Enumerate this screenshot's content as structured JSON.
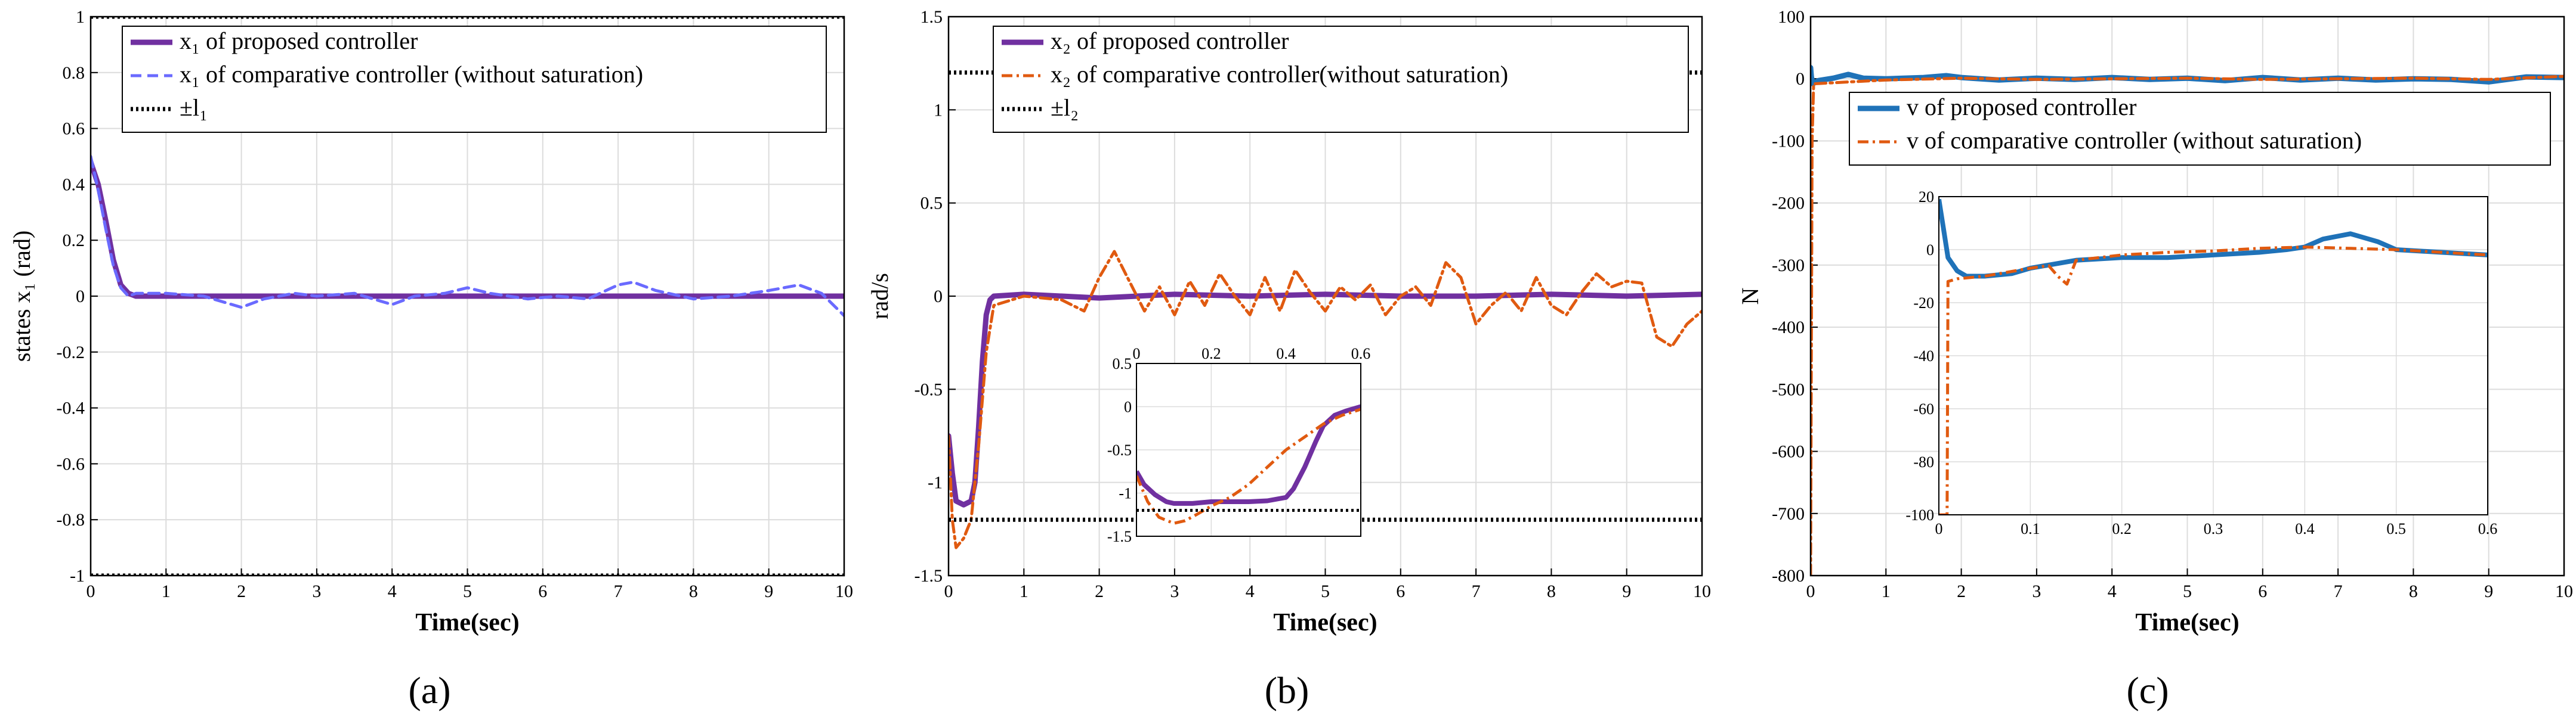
{
  "chart_data": [
    {
      "type": "line",
      "panel_label": "(a)",
      "xlabel": "Time(sec)",
      "ylabel": "states x₁ (rad)",
      "xlim": [
        0,
        10
      ],
      "ylim": [
        -1,
        1
      ],
      "xticks": [
        "0",
        "1",
        "2",
        "3",
        "4",
        "5",
        "6",
        "7",
        "8",
        "9",
        "10"
      ],
      "yticks": [
        "-1",
        "-0.8",
        "-0.6",
        "-0.4",
        "-0.2",
        "0",
        "0.2",
        "0.4",
        "0.6",
        "0.8",
        "1"
      ],
      "grid": true,
      "legend_position": "top-left",
      "series": [
        {
          "name": "x₁ of proposed controller",
          "color": "#7030a0",
          "style": "solid",
          "x": [
            0,
            0.1,
            0.2,
            0.3,
            0.4,
            0.5,
            0.6,
            1,
            2,
            3,
            4,
            5,
            6,
            7,
            8,
            9,
            10
          ],
          "y": [
            0.48,
            0.4,
            0.27,
            0.13,
            0.04,
            0.01,
            0,
            0,
            0,
            0,
            0,
            0,
            0,
            0,
            0,
            0,
            0
          ]
        },
        {
          "name": "x₁ of comparative controller (without saturation)",
          "color": "#6a6aff",
          "style": "dashed",
          "x": [
            0,
            0.1,
            0.2,
            0.3,
            0.4,
            0.5,
            0.6,
            1,
            1.5,
            2,
            2.3,
            2.7,
            3,
            3.5,
            4,
            4.3,
            4.7,
            5,
            5.3,
            5.8,
            6.2,
            6.6,
            7,
            7.2,
            7.5,
            8,
            8.5,
            9,
            9.4,
            9.7,
            10
          ],
          "y": [
            0.5,
            0.38,
            0.24,
            0.11,
            0.03,
            0,
            0.01,
            0.01,
            0,
            -0.04,
            -0.01,
            0.01,
            0,
            0.01,
            -0.03,
            0,
            0.01,
            0.03,
            0.01,
            -0.01,
            0,
            -0.01,
            0.04,
            0.05,
            0.02,
            -0.01,
            0,
            0.02,
            0.04,
            0.01,
            -0.07
          ]
        },
        {
          "name": "±l₁",
          "color": "#000000",
          "style": "dotted",
          "x": [
            0,
            10
          ],
          "y": [
            1,
            1
          ],
          "mirror": true
        }
      ]
    },
    {
      "type": "line",
      "panel_label": "(b)",
      "xlabel": "Time(sec)",
      "ylabel": "rad/s",
      "xlim": [
        0,
        10
      ],
      "ylim": [
        -1.5,
        1.5
      ],
      "xticks": [
        "0",
        "1",
        "2",
        "3",
        "4",
        "5",
        "6",
        "7",
        "8",
        "9",
        "10"
      ],
      "yticks": [
        "-1.5",
        "-1",
        "-0.5",
        "0",
        "0.5",
        "1",
        "1.5"
      ],
      "grid": true,
      "legend_position": "top",
      "series": [
        {
          "name": "x₂ of proposed controller",
          "color": "#7030a0",
          "style": "solid",
          "x": [
            0,
            0.05,
            0.1,
            0.2,
            0.3,
            0.35,
            0.4,
            0.45,
            0.5,
            0.55,
            0.6,
            1,
            2,
            3,
            4,
            5,
            6,
            7,
            8,
            9,
            10
          ],
          "y": [
            -0.75,
            -0.95,
            -1.1,
            -1.12,
            -1.1,
            -1.0,
            -0.7,
            -0.35,
            -0.1,
            -0.02,
            0,
            0.01,
            -0.01,
            0.01,
            0,
            0.01,
            0,
            0,
            0.01,
            0,
            0.01
          ]
        },
        {
          "name": "x₂ of comparative controller(without saturation)",
          "color": "#e05a10",
          "style": "dashdot",
          "x": [
            0,
            0.05,
            0.1,
            0.2,
            0.3,
            0.4,
            0.5,
            0.6,
            1,
            1.5,
            1.8,
            2,
            2.2,
            2.4,
            2.6,
            2.8,
            3,
            3.2,
            3.4,
            3.6,
            3.8,
            4,
            4.2,
            4.4,
            4.6,
            4.8,
            5,
            5.2,
            5.4,
            5.6,
            5.8,
            6,
            6.2,
            6.4,
            6.6,
            6.8,
            7,
            7.2,
            7.4,
            7.6,
            7.8,
            8,
            8.2,
            8.4,
            8.6,
            8.8,
            9,
            9.2,
            9.4,
            9.6,
            9.8,
            10
          ],
          "y": [
            -0.75,
            -1.2,
            -1.35,
            -1.3,
            -1.2,
            -0.8,
            -0.3,
            -0.05,
            0,
            -0.02,
            -0.08,
            0.1,
            0.24,
            0.08,
            -0.08,
            0.05,
            -0.1,
            0.08,
            -0.05,
            0.12,
            0,
            -0.1,
            0.1,
            -0.08,
            0.14,
            0.02,
            -0.08,
            0.05,
            -0.02,
            0.06,
            -0.1,
            0,
            0.05,
            -0.05,
            0.18,
            0.1,
            -0.15,
            -0.05,
            0.02,
            -0.08,
            0.1,
            -0.05,
            -0.1,
            0.02,
            0.12,
            0.05,
            0.08,
            0.07,
            -0.22,
            -0.27,
            -0.15,
            -0.08
          ]
        },
        {
          "name": "±l₂",
          "color": "#000000",
          "style": "dotted",
          "x": [
            0,
            10
          ],
          "y": [
            1.2,
            1.2
          ],
          "mirror": true
        }
      ],
      "inset": {
        "xlim": [
          0,
          0.6
        ],
        "ylim": [
          -1.5,
          0.5
        ],
        "xticks": [
          "0",
          "0.2",
          "0.4",
          "0.6"
        ],
        "yticks": [
          "-1.5",
          "-1",
          "-0.5",
          "0",
          "0.5"
        ],
        "series": [
          {
            "color": "#7030a0",
            "style": "solid",
            "x": [
              0,
              0.02,
              0.05,
              0.08,
              0.1,
              0.15,
              0.2,
              0.25,
              0.3,
              0.35,
              0.4,
              0.42,
              0.45,
              0.48,
              0.5,
              0.53,
              0.56,
              0.6
            ],
            "y": [
              -0.75,
              -0.9,
              -1.02,
              -1.1,
              -1.12,
              -1.12,
              -1.1,
              -1.1,
              -1.1,
              -1.09,
              -1.05,
              -0.95,
              -0.7,
              -0.4,
              -0.22,
              -0.1,
              -0.05,
              0
            ]
          },
          {
            "color": "#e05a10",
            "style": "dashdot",
            "x": [
              0,
              0.03,
              0.06,
              0.1,
              0.13,
              0.16,
              0.2,
              0.25,
              0.3,
              0.35,
              0.4,
              0.45,
              0.5,
              0.55,
              0.6
            ],
            "y": [
              -0.8,
              -1.1,
              -1.28,
              -1.35,
              -1.32,
              -1.25,
              -1.15,
              -1.05,
              -0.9,
              -0.7,
              -0.5,
              -0.35,
              -0.2,
              -0.1,
              -0.03
            ]
          },
          {
            "color": "#000000",
            "style": "dotted",
            "x": [
              0,
              0.6
            ],
            "y": [
              -1.2,
              -1.2
            ]
          }
        ]
      }
    },
    {
      "type": "line",
      "panel_label": "(c)",
      "xlabel": "Time(sec)",
      "ylabel": "N",
      "xlim": [
        0,
        10
      ],
      "ylim": [
        -800,
        100
      ],
      "xticks": [
        "0",
        "1",
        "2",
        "3",
        "4",
        "5",
        "6",
        "7",
        "8",
        "9",
        "10"
      ],
      "yticks": [
        "-800",
        "-700",
        "-600",
        "-500",
        "-400",
        "-300",
        "-200",
        "-100",
        "0",
        "100"
      ],
      "grid": true,
      "legend_position": "upper-middle",
      "series": [
        {
          "name": "v of proposed controller",
          "color": "#1f72b8",
          "style": "solid",
          "x": [
            0,
            0.01,
            0.03,
            0.1,
            0.3,
            0.5,
            0.7,
            1,
            1.5,
            1.8,
            2,
            2.5,
            3,
            3.5,
            4,
            4.5,
            5,
            5.5,
            6,
            6.5,
            7,
            7.5,
            8,
            8.5,
            9,
            9.5,
            10
          ],
          "y": [
            18,
            3,
            -8,
            -3,
            1,
            7,
            1,
            0,
            2,
            5,
            2,
            -2,
            1,
            -1,
            2,
            -1,
            1,
            -3,
            2,
            -2,
            1,
            -2,
            0,
            -1,
            -5,
            3,
            2
          ]
        },
        {
          "name": "v of comparative controller (without saturation)",
          "color": "#e05a10",
          "style": "dashdot",
          "x": [
            0,
            0.02,
            0.04,
            1,
            2,
            3,
            4,
            5,
            6,
            7,
            8,
            9,
            10
          ],
          "y": [
            -800,
            -100,
            -8,
            -2,
            1,
            -1,
            0,
            1,
            -1,
            0,
            1,
            -1,
            4
          ]
        }
      ],
      "inset": {
        "xlim": [
          0,
          0.6
        ],
        "ylim": [
          -100,
          20
        ],
        "xticks": [
          "0",
          "0.1",
          "0.2",
          "0.3",
          "0.4",
          "0.5",
          "0.6"
        ],
        "yticks": [
          "-100",
          "-80",
          "-60",
          "-40",
          "-20",
          "0",
          "20"
        ],
        "series": [
          {
            "color": "#1f72b8",
            "style": "solid",
            "x": [
              0,
              0.005,
              0.01,
              0.02,
              0.03,
              0.05,
              0.08,
              0.1,
              0.15,
              0.2,
              0.25,
              0.3,
              0.35,
              0.38,
              0.4,
              0.42,
              0.45,
              0.48,
              0.5,
              0.55,
              0.6
            ],
            "y": [
              19,
              8,
              -3,
              -8,
              -10,
              -10,
              -9,
              -7,
              -4,
              -3,
              -3,
              -2,
              -1,
              0,
              1,
              4,
              6,
              3,
              0,
              -1,
              -2
            ]
          },
          {
            "color": "#e05a10",
            "style": "dashdot",
            "x": [
              0,
              0.009,
              0.01,
              0.02,
              0.05,
              0.1,
              0.12,
              0.13,
              0.14,
              0.15,
              0.2,
              0.25,
              0.3,
              0.35,
              0.4,
              0.45,
              0.5,
              0.55,
              0.6
            ],
            "y": [
              -100,
              -100,
              -12,
              -11,
              -10,
              -7,
              -6,
              -10,
              -13,
              -4,
              -2,
              -1,
              -0.5,
              0.5,
              1,
              0.5,
              0,
              -1,
              -2
            ]
          }
        ]
      }
    }
  ]
}
